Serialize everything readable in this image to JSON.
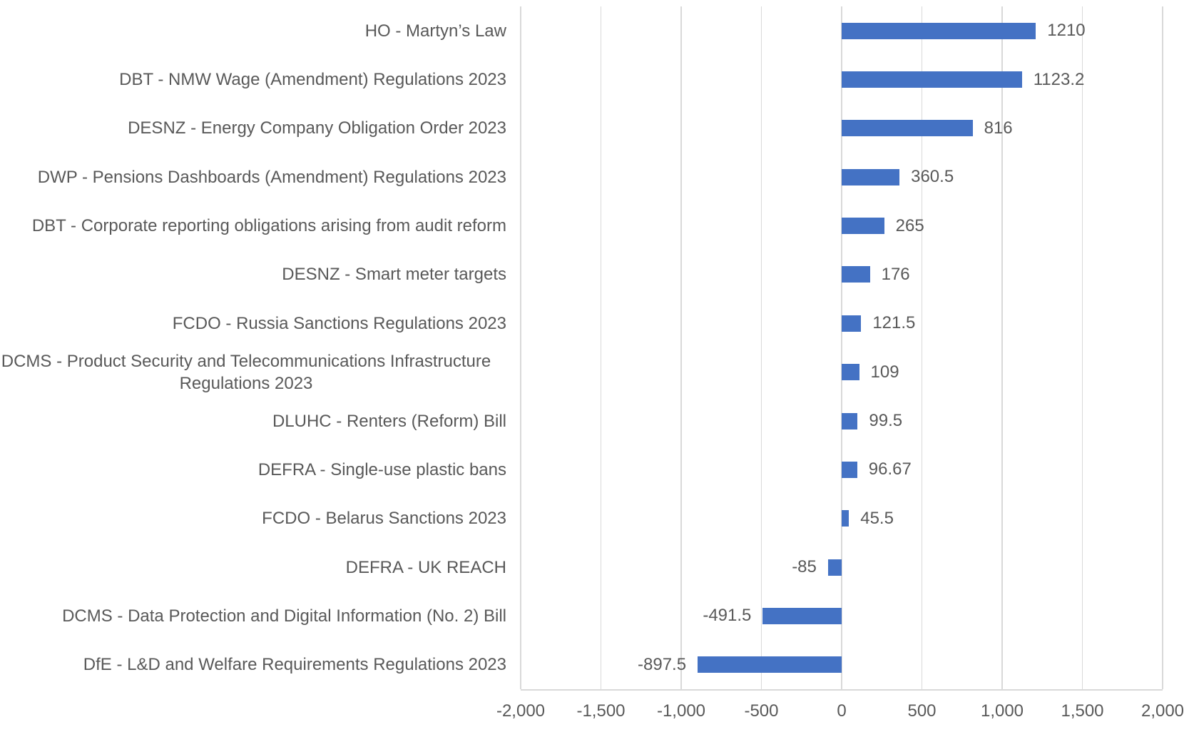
{
  "chart_data": {
    "type": "bar",
    "orientation": "horizontal",
    "title": "",
    "xlabel": "",
    "ylabel": "",
    "xlim": [
      -2000,
      2000
    ],
    "x_ticks": [
      -2000,
      -1500,
      -1000,
      -500,
      0,
      500,
      1000,
      1500,
      2000
    ],
    "x_tick_labels": [
      "-2,000",
      "-1,500",
      "-1,000",
      "-500",
      "0",
      "500",
      "1,000",
      "1,500",
      "2,000"
    ],
    "grid": true,
    "legend_position": "none",
    "bar_color": "#4472C4",
    "gridline_color": "#D9D9D9",
    "axis_line_color": "#D9D9D9",
    "text_color": "#595959",
    "categories": [
      "HO - Martyn’s Law",
      "DBT - NMW Wage (Amendment) Regulations 2023",
      "DESNZ - Energy Company Obligation Order 2023",
      "DWP - Pensions Dashboards (Amendment) Regulations 2023",
      "DBT - Corporate reporting obligations arising from audit reform",
      "DESNZ - Smart meter targets",
      "FCDO - Russia Sanctions Regulations 2023",
      "DCMS -  Product Security and Telecommunications Infrastructure\nRegulations 2023",
      "DLUHC - Renters (Reform) Bill",
      "DEFRA - Single-use plastic bans",
      "FCDO - Belarus Sanctions 2023",
      "DEFRA - UK REACH",
      "DCMS - Data Protection and Digital Information (No. 2) Bill",
      "DfE - L&D and Welfare Requirements Regulations 2023"
    ],
    "values": [
      1210,
      1123.2,
      816,
      360.5,
      265,
      176,
      121.5,
      109,
      99.5,
      96.67,
      45.5,
      -85,
      -491.5,
      -897.5
    ],
    "value_labels": [
      "1210",
      "1123.2",
      "816",
      "360.5",
      "265",
      "176",
      "121.5",
      "109",
      "99.5",
      "96.67",
      "45.5",
      "-85",
      "-491.5",
      "-897.5"
    ]
  }
}
